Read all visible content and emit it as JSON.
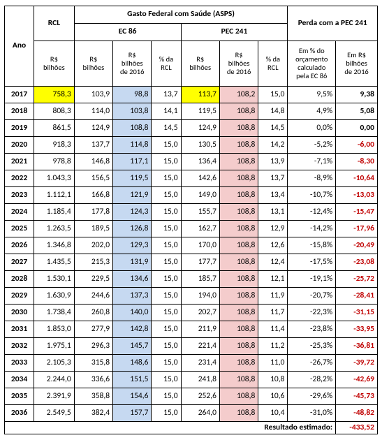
{
  "colors": {
    "highlight_yellow": "#ffff00",
    "col_blue": "#c6d9f1",
    "col_pink": "#f4cccc",
    "negative_text": "#c00000",
    "border": "#000000",
    "background": "#ffffff"
  },
  "header": {
    "ano": "Ano",
    "rcl_group": "RCL",
    "gasto_group": "Gasto Federal com Saúde (ASPS)",
    "ec86": "EC 86",
    "pec241": "PEC 241",
    "perda_group": "Perda com a PEC 241",
    "cols": {
      "rcl": "R$\nbilhões",
      "ec_bilhoes": "R$\nbilhões",
      "ec_bilhoes2016": "R$\nbilhões\nde 2016",
      "ec_pct": "% da\nRCL",
      "pec_bilhoes": "R$\nbilhões",
      "pec_bilhoes2016": "R$\nbilhões\nde 2016",
      "pec_pct": "% da\nRCL",
      "perda_pct": "Em % do\norçamento\ncalculado\npela EC 86",
      "perda_bilhoes": "Em R$\nbilhões\nde 2016"
    }
  },
  "rows": [
    {
      "ano": "2017",
      "rcl": "758,3",
      "ec_b": "103,9",
      "ec_b16": "98,8",
      "ec_pct": "13,7",
      "pec_b": "113,7",
      "pec_b16": "108,2",
      "pec_pct": "15,0",
      "p_pct": "9,5%",
      "p_b": "9,38",
      "neg": false,
      "hl": true
    },
    {
      "ano": "2018",
      "rcl": "808,3",
      "ec_b": "114,0",
      "ec_b16": "103,8",
      "ec_pct": "14,1",
      "pec_b": "119,5",
      "pec_b16": "108,8",
      "pec_pct": "14,8",
      "p_pct": "4,9%",
      "p_b": "5,08",
      "neg": false,
      "hl": false
    },
    {
      "ano": "2019",
      "rcl": "861,5",
      "ec_b": "124,9",
      "ec_b16": "108,8",
      "ec_pct": "14,5",
      "pec_b": "124,9",
      "pec_b16": "108,8",
      "pec_pct": "14,5",
      "p_pct": "0,0%",
      "p_b": "0,00",
      "neg": false,
      "hl": false
    },
    {
      "ano": "2020",
      "rcl": "918,3",
      "ec_b": "137,7",
      "ec_b16": "114,8",
      "ec_pct": "15,0",
      "pec_b": "130,5",
      "pec_b16": "108,8",
      "pec_pct": "14,2",
      "p_pct": "-5,2%",
      "p_b": "-6,00",
      "neg": true,
      "hl": false
    },
    {
      "ano": "2021",
      "rcl": "978,8",
      "ec_b": "146,8",
      "ec_b16": "117,1",
      "ec_pct": "15,0",
      "pec_b": "136,4",
      "pec_b16": "108,8",
      "pec_pct": "13,9",
      "p_pct": "-7,1%",
      "p_b": "-8,30",
      "neg": true,
      "hl": false
    },
    {
      "ano": "2022",
      "rcl": "1.043,3",
      "ec_b": "156,5",
      "ec_b16": "119,5",
      "ec_pct": "15,0",
      "pec_b": "142,6",
      "pec_b16": "108,8",
      "pec_pct": "13,7",
      "p_pct": "-8,9%",
      "p_b": "-10,64",
      "neg": true,
      "hl": false
    },
    {
      "ano": "2023",
      "rcl": "1.112,1",
      "ec_b": "166,8",
      "ec_b16": "121,9",
      "ec_pct": "15,0",
      "pec_b": "149,0",
      "pec_b16": "108,8",
      "pec_pct": "13,4",
      "p_pct": "-10,7%",
      "p_b": "-13,03",
      "neg": true,
      "hl": false
    },
    {
      "ano": "2024",
      "rcl": "1.185,4",
      "ec_b": "177,8",
      "ec_b16": "124,3",
      "ec_pct": "15,0",
      "pec_b": "155,7",
      "pec_b16": "108,8",
      "pec_pct": "13,1",
      "p_pct": "-12,4%",
      "p_b": "-15,47",
      "neg": true,
      "hl": false
    },
    {
      "ano": "2025",
      "rcl": "1.263,5",
      "ec_b": "189,5",
      "ec_b16": "126,8",
      "ec_pct": "15,0",
      "pec_b": "162,7",
      "pec_b16": "108,8",
      "pec_pct": "12,9",
      "p_pct": "-14,2%",
      "p_b": "-17,96",
      "neg": true,
      "hl": false
    },
    {
      "ano": "2026",
      "rcl": "1.346,8",
      "ec_b": "202,0",
      "ec_b16": "129,3",
      "ec_pct": "15,0",
      "pec_b": "170,0",
      "pec_b16": "108,8",
      "pec_pct": "12,6",
      "p_pct": "-15,8%",
      "p_b": "-20,49",
      "neg": true,
      "hl": false
    },
    {
      "ano": "2027",
      "rcl": "1.435,5",
      "ec_b": "215,3",
      "ec_b16": "131,9",
      "ec_pct": "15,0",
      "pec_b": "177,7",
      "pec_b16": "108,8",
      "pec_pct": "12,4",
      "p_pct": "-17,5%",
      "p_b": "-23,08",
      "neg": true,
      "hl": false
    },
    {
      "ano": "2028",
      "rcl": "1.530,1",
      "ec_b": "229,5",
      "ec_b16": "134,6",
      "ec_pct": "15,0",
      "pec_b": "185,7",
      "pec_b16": "108,8",
      "pec_pct": "12,1",
      "p_pct": "-19,1%",
      "p_b": "-25,72",
      "neg": true,
      "hl": false
    },
    {
      "ano": "2029",
      "rcl": "1.630,9",
      "ec_b": "244,6",
      "ec_b16": "137,3",
      "ec_pct": "15,0",
      "pec_b": "194,0",
      "pec_b16": "108,8",
      "pec_pct": "11,9",
      "p_pct": "-20,7%",
      "p_b": "-28,41",
      "neg": true,
      "hl": false
    },
    {
      "ano": "2030",
      "rcl": "1.738,4",
      "ec_b": "260,8",
      "ec_b16": "140,0",
      "ec_pct": "15,0",
      "pec_b": "202,7",
      "pec_b16": "108,8",
      "pec_pct": "11,7",
      "p_pct": "-22,3%",
      "p_b": "-31,15",
      "neg": true,
      "hl": false
    },
    {
      "ano": "2031",
      "rcl": "1.853,0",
      "ec_b": "277,9",
      "ec_b16": "142,8",
      "ec_pct": "15,0",
      "pec_b": "211,9",
      "pec_b16": "108,8",
      "pec_pct": "11,4",
      "p_pct": "-23,8%",
      "p_b": "-33,95",
      "neg": true,
      "hl": false
    },
    {
      "ano": "2032",
      "rcl": "1.975,1",
      "ec_b": "296,3",
      "ec_b16": "145,7",
      "ec_pct": "15,0",
      "pec_b": "221,4",
      "pec_b16": "108,8",
      "pec_pct": "11,2",
      "p_pct": "-25,3%",
      "p_b": "-36,81",
      "neg": true,
      "hl": false
    },
    {
      "ano": "2033",
      "rcl": "2.105,3",
      "ec_b": "315,8",
      "ec_b16": "148,6",
      "ec_pct": "15,0",
      "pec_b": "231,4",
      "pec_b16": "108,8",
      "pec_pct": "11,0",
      "p_pct": "-26,7%",
      "p_b": "-39,72",
      "neg": true,
      "hl": false
    },
    {
      "ano": "2034",
      "rcl": "2.244,0",
      "ec_b": "336,6",
      "ec_b16": "151,5",
      "ec_pct": "15,0",
      "pec_b": "241,8",
      "pec_b16": "108,8",
      "pec_pct": "10,8",
      "p_pct": "-28,2%",
      "p_b": "-42,69",
      "neg": true,
      "hl": false
    },
    {
      "ano": "2035",
      "rcl": "2.391,9",
      "ec_b": "358,8",
      "ec_b16": "154,6",
      "ec_pct": "15,0",
      "pec_b": "252,6",
      "pec_b16": "108,8",
      "pec_pct": "10,6",
      "p_pct": "-29,6%",
      "p_b": "-45,73",
      "neg": true,
      "hl": false
    },
    {
      "ano": "2036",
      "rcl": "2.549,5",
      "ec_b": "382,4",
      "ec_b16": "157,7",
      "ec_pct": "15,0",
      "pec_b": "264,0",
      "pec_b16": "108,8",
      "pec_pct": "10,4",
      "p_pct": "-31,0%",
      "p_b": "-48,82",
      "neg": true,
      "hl": false
    }
  ],
  "footer": {
    "label": "Resultado estimado:",
    "value": "-433,52"
  }
}
